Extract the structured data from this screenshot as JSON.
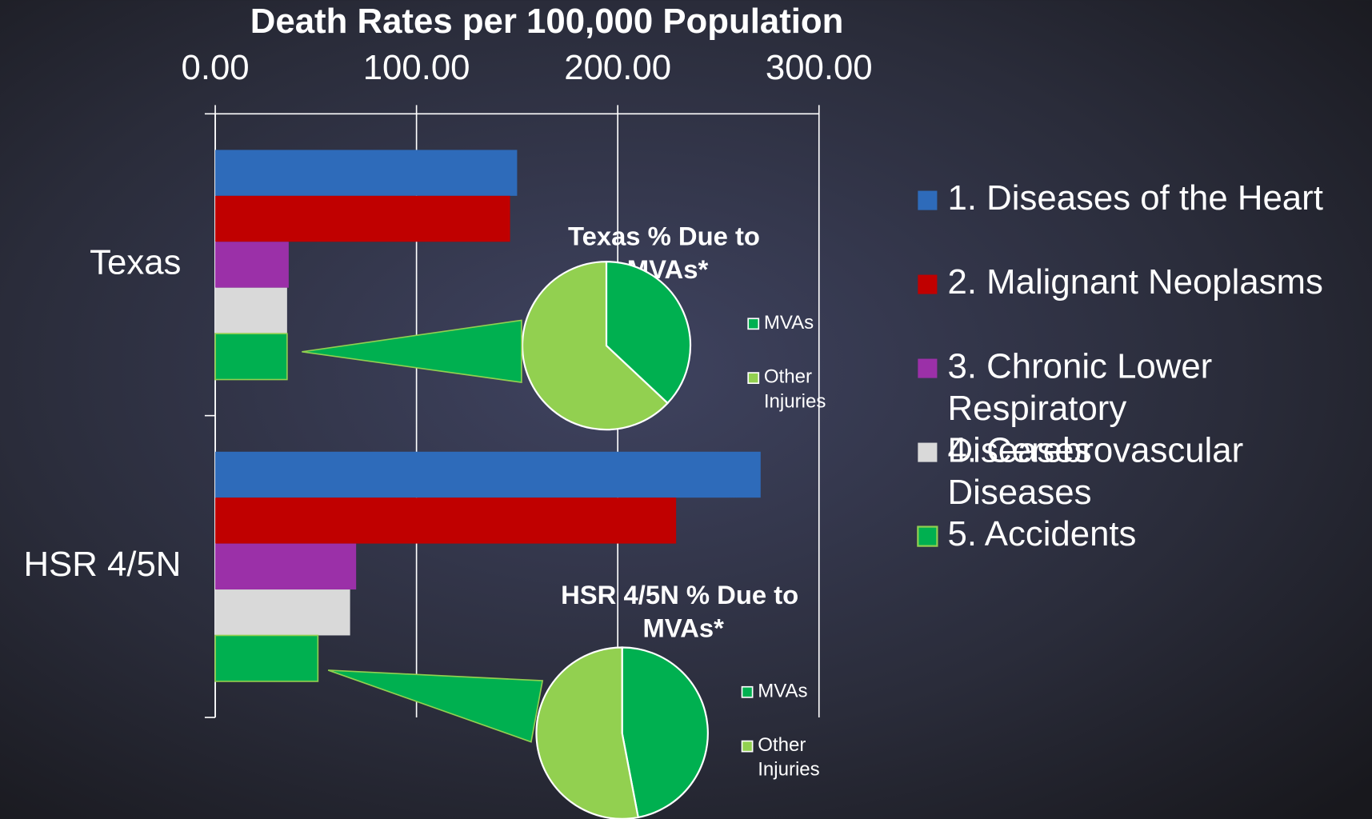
{
  "chart_data": [
    {
      "type": "barh",
      "title": "Death Rates per 100,000 Population",
      "categories": [
        "Texas",
        "HSR 4/5N"
      ],
      "series": [
        {
          "name": "1. Diseases of the Heart",
          "color": "#2e6bba",
          "values": [
            150,
            271
          ]
        },
        {
          "name": "2. Malignant Neoplasms",
          "color": "#c00000",
          "values": [
            146.5,
            229
          ]
        },
        {
          "name": "3. Chronic Lower Respiratory Diseases",
          "color": "#9b30a8",
          "values": [
            36.5,
            70
          ]
        },
        {
          "name": "4. Cerebrovascular Diseases",
          "color": "#d9d9d9",
          "values": [
            35.7,
            67
          ]
        },
        {
          "name": "5. Accidents",
          "color": "#00b050",
          "values": [
            35.7,
            51
          ]
        }
      ],
      "xlim": [
        0,
        300
      ],
      "xticks": [
        {
          "value": 0,
          "label": "0.00"
        },
        {
          "value": 100,
          "label": "100.00"
        },
        {
          "value": 200,
          "label": "200.00"
        },
        {
          "value": 300,
          "label": "300.00"
        }
      ],
      "grid": true,
      "legend": "right"
    },
    {
      "type": "pie",
      "title": "Texas % Due to MVAs*",
      "categories": [
        "MVAs",
        "Other Injuries"
      ],
      "values": [
        37,
        63
      ],
      "colors": [
        "#00b050",
        "#92d050"
      ]
    },
    {
      "type": "pie",
      "title": "HSR 4/5N % Due to MVAs*",
      "categories": [
        "MVAs",
        "Other Injuries"
      ],
      "values": [
        47,
        53
      ],
      "colors": [
        "#00b050",
        "#92d050"
      ]
    }
  ]
}
